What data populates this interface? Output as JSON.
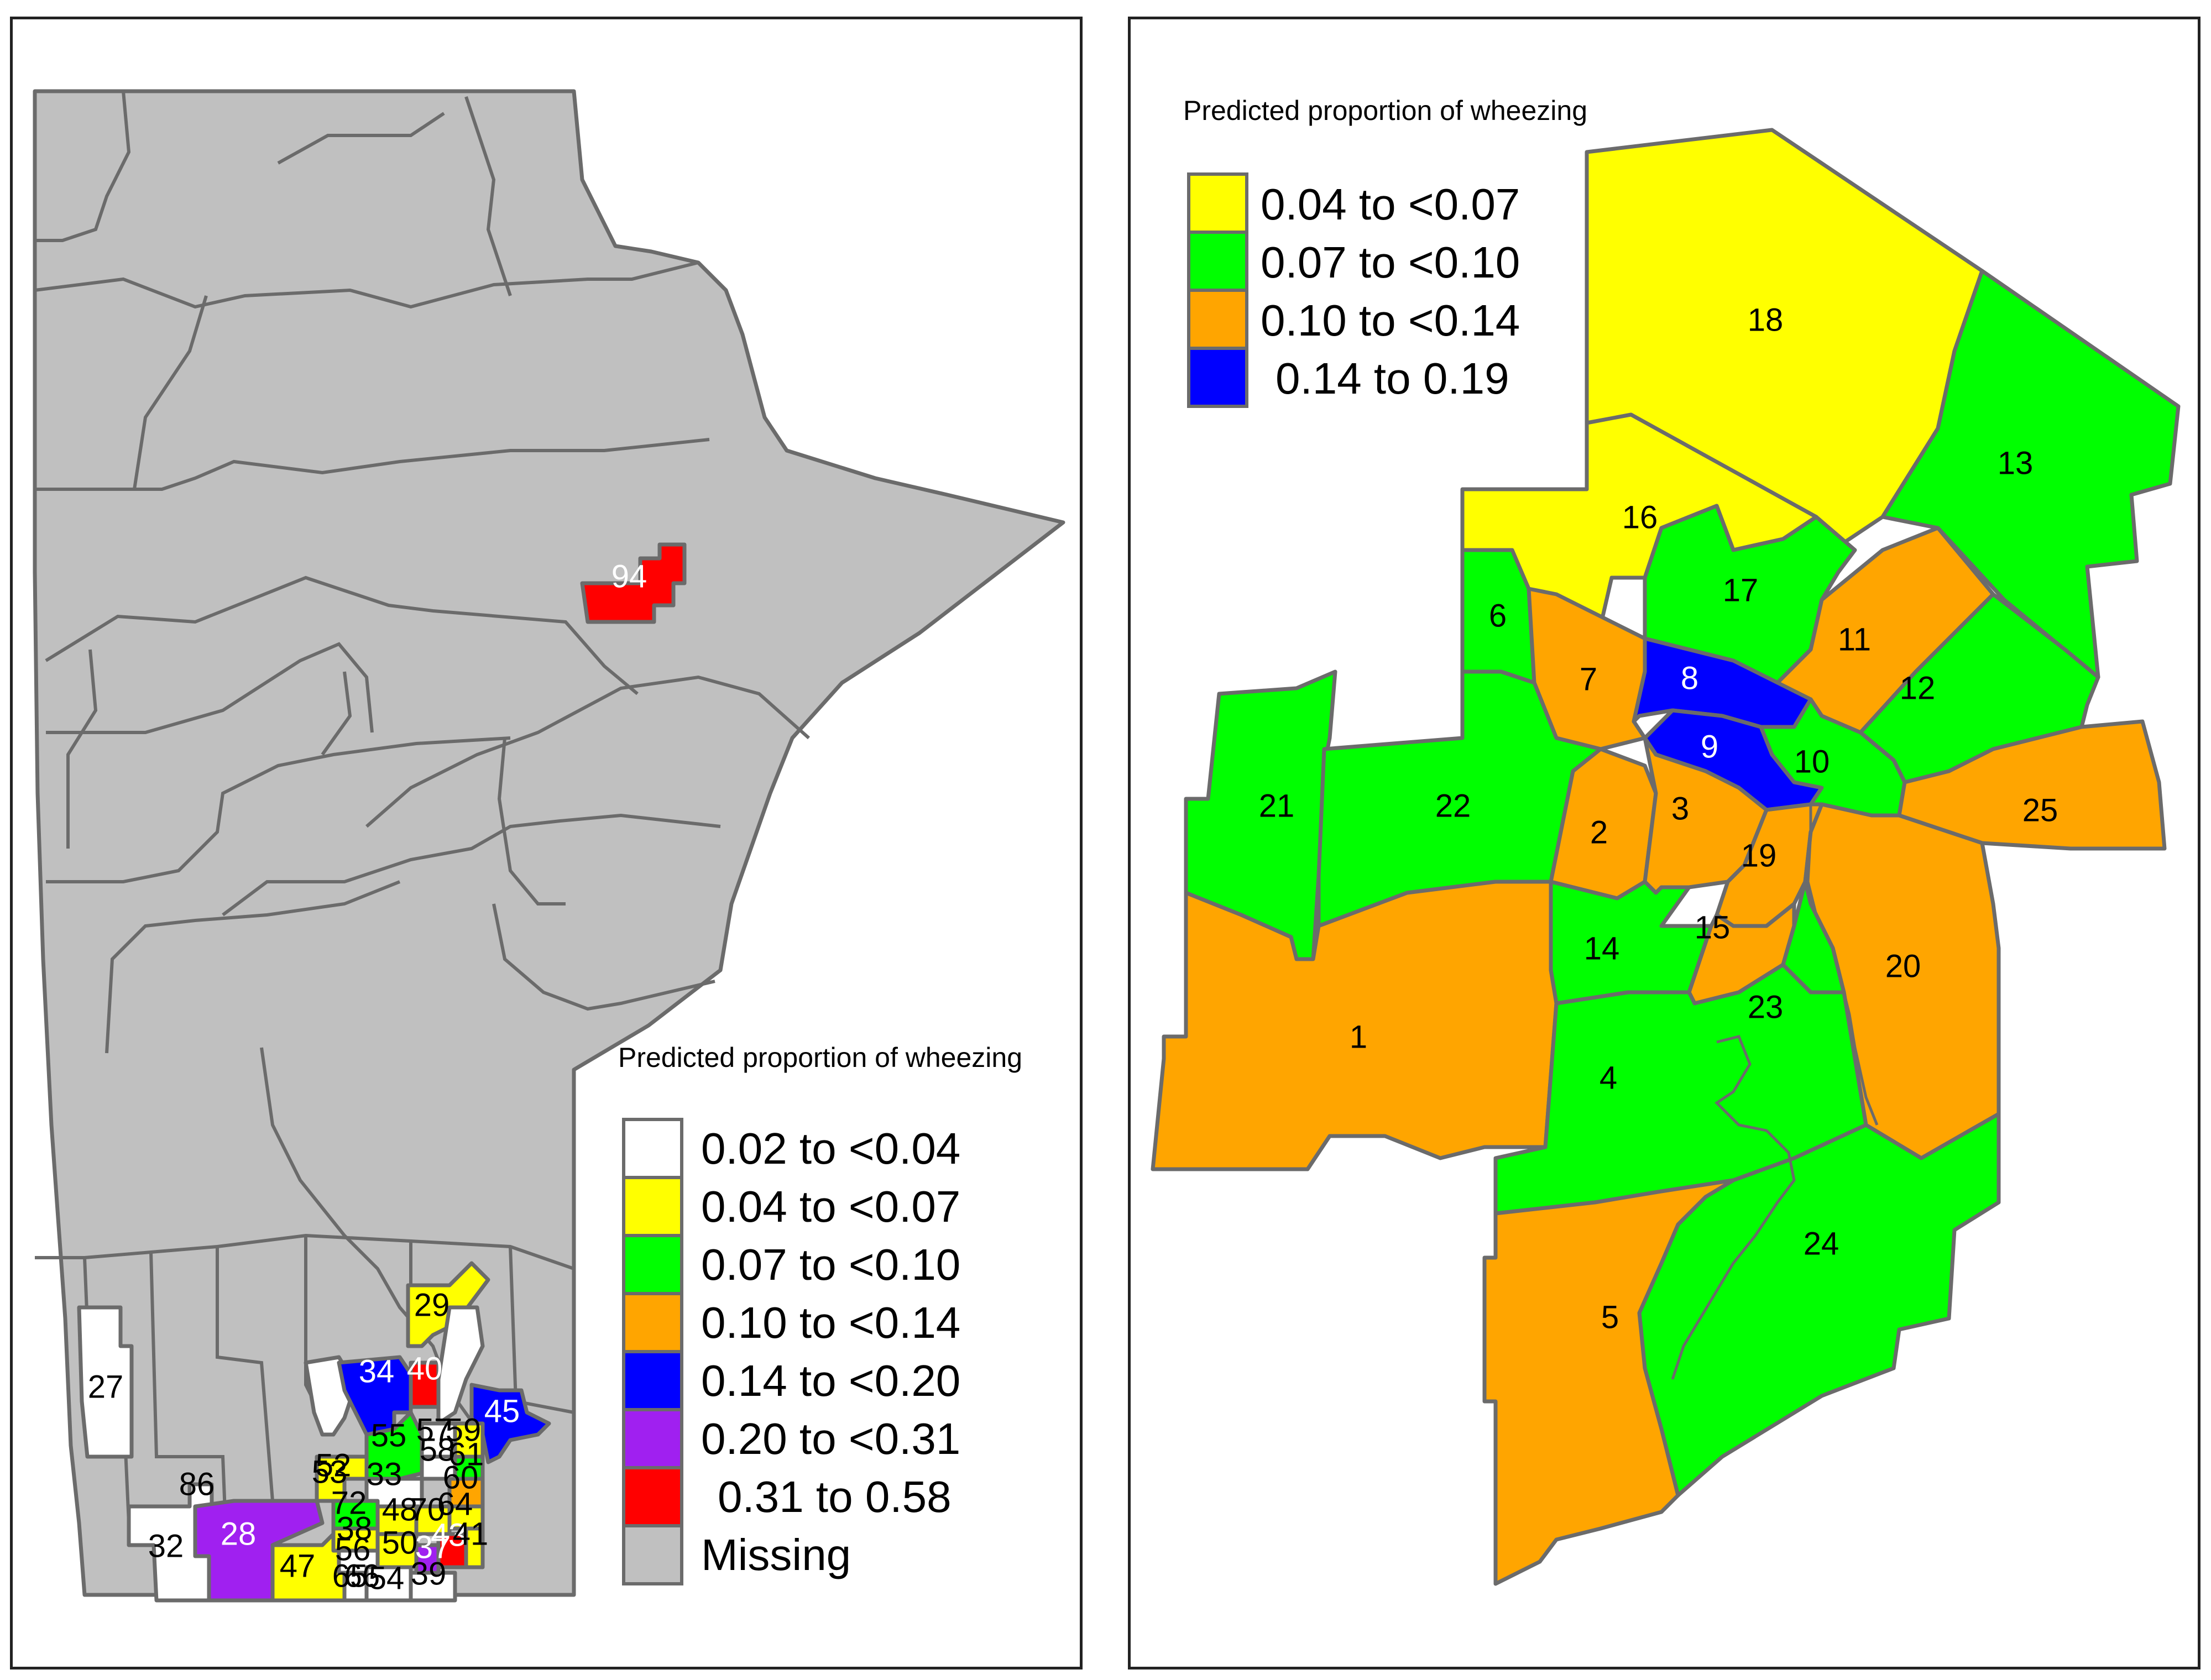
{
  "left_map": {
    "legend_title": "Predicted proportion of wheezing",
    "legend": [
      {
        "label": "0.02 to <0.04",
        "color": "#ffffff"
      },
      {
        "label": "0.04 to <0.07",
        "color": "#ffff00"
      },
      {
        "label": "0.07 to <0.10",
        "color": "#00ff00"
      },
      {
        "label": "0.10 to <0.14",
        "color": "#ffa500"
      },
      {
        "label": "0.14 to <0.20",
        "color": "#0000ff"
      },
      {
        "label": "0.20 to <0.31",
        "color": "#a020f0"
      },
      {
        "label": "0.31 to 0.58",
        "color": "#ff0000"
      },
      {
        "label": "Missing",
        "color": "#c0c0c0"
      }
    ],
    "region_labels": [
      "94",
      "27",
      "32",
      "86",
      "28",
      "47",
      "29",
      "34",
      "40",
      "45",
      "55",
      "57",
      "59",
      "58",
      "61",
      "60",
      "52",
      "53",
      "33",
      "72",
      "38",
      "56",
      "48",
      "70",
      "64",
      "50",
      "43",
      "37",
      "41",
      "65",
      "66",
      "54",
      "39"
    ]
  },
  "right_map": {
    "legend_title": "Predicted proportion of wheezing",
    "legend": [
      {
        "label": "0.04 to <0.07",
        "color": "#ffff00"
      },
      {
        "label": "0.07 to <0.10",
        "color": "#00ff00"
      },
      {
        "label": "0.10 to <0.14",
        "color": "#ffa500"
      },
      {
        "label": "0.14 to 0.19",
        "color": "#0000ff"
      }
    ],
    "region_labels": [
      "1",
      "2",
      "3",
      "4",
      "5",
      "6",
      "7",
      "8",
      "9",
      "10",
      "11",
      "12",
      "13",
      "14",
      "15",
      "16",
      "17",
      "18",
      "19",
      "20",
      "21",
      "22",
      "23",
      "24",
      "25"
    ]
  }
}
